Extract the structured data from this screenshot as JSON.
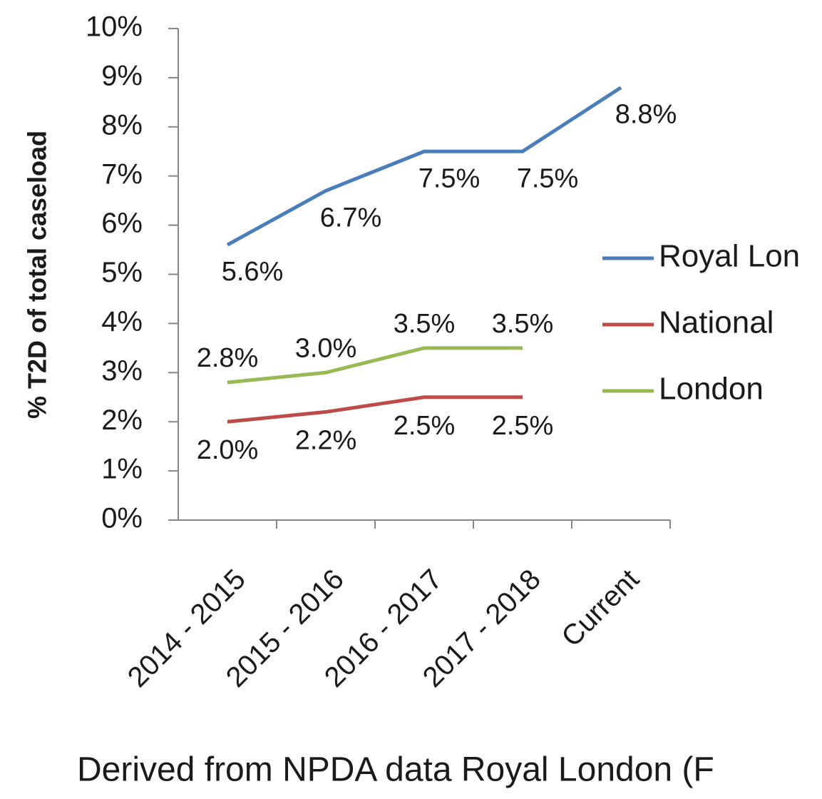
{
  "chart_data": {
    "type": "line",
    "y_label": "% T2D of total caseload",
    "footnote": "Derived from NPDA data Royal London (F",
    "categories": [
      "2014 - 2015",
      "2015 - 2016",
      "2016 - 2017",
      "2017 - 2018",
      "Current"
    ],
    "series": [
      {
        "name": "Royal Lon",
        "color": "#4a7ebb",
        "values": [
          5.6,
          6.7,
          7.5,
          7.5,
          8.8
        ],
        "value_labels": [
          "5.6%",
          "6.7%",
          "7.5%",
          "7.5%",
          "8.8%"
        ]
      },
      {
        "name": "National",
        "color": "#be4b48",
        "values": [
          2.0,
          2.2,
          2.5,
          2.5,
          null
        ],
        "value_labels": [
          "2.0%",
          "2.2%",
          "2.5%",
          "2.5%",
          null
        ]
      },
      {
        "name": "London",
        "color": "#98b954",
        "values": [
          2.8,
          3.0,
          3.5,
          3.5,
          null
        ],
        "value_labels": [
          "2.8%",
          "3.0%",
          "3.5%",
          "3.5%",
          null
        ]
      }
    ],
    "ylim": [
      0,
      10
    ],
    "yticks": [
      {
        "value": 0,
        "label": "0%"
      },
      {
        "value": 1,
        "label": "1%"
      },
      {
        "value": 2,
        "label": "2%"
      },
      {
        "value": 3,
        "label": "3%"
      },
      {
        "value": 4,
        "label": "4%"
      },
      {
        "value": 5,
        "label": "5%"
      },
      {
        "value": 6,
        "label": "6%"
      },
      {
        "value": 7,
        "label": "7%"
      },
      {
        "value": 8,
        "label": "8%"
      },
      {
        "value": 9,
        "label": "9%"
      },
      {
        "value": 10,
        "label": "10%"
      }
    ],
    "legend": "right"
  }
}
